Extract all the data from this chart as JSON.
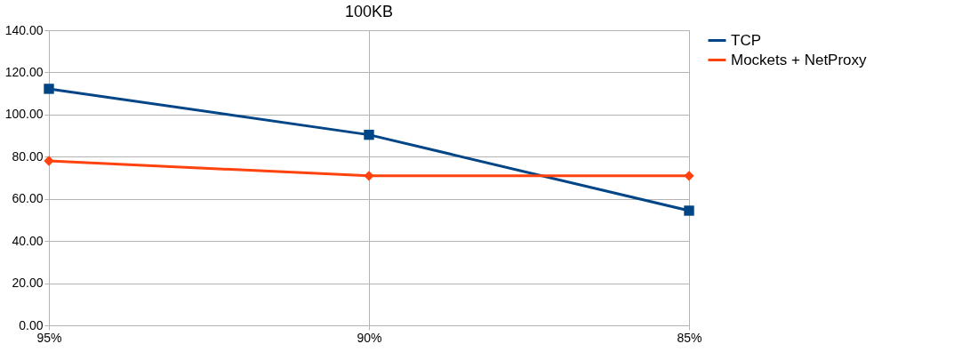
{
  "chart_data": {
    "type": "line",
    "title": "100KB",
    "categories": [
      "95%",
      "90%",
      "85%"
    ],
    "series": [
      {
        "name": "TCP",
        "color": "#004586",
        "marker": "square",
        "values": [
          112.2,
          90.4,
          54.4
        ]
      },
      {
        "name": "Mockets + NetProxy",
        "color": "#ff420e",
        "marker": "diamond",
        "values": [
          78.0,
          70.9,
          70.9
        ]
      }
    ],
    "ylim": [
      0,
      140
    ],
    "yticks": [
      {
        "value": 0,
        "label": "0.00"
      },
      {
        "value": 20,
        "label": "20.00"
      },
      {
        "value": 40,
        "label": "40.00"
      },
      {
        "value": 60,
        "label": "60.00"
      },
      {
        "value": 80,
        "label": "80.00"
      },
      {
        "value": 100,
        "label": "100.00"
      },
      {
        "value": 120,
        "label": "120.00"
      },
      {
        "value": 140,
        "label": "140.00"
      }
    ],
    "grid": true,
    "legend": "right",
    "line_style": "solid"
  }
}
